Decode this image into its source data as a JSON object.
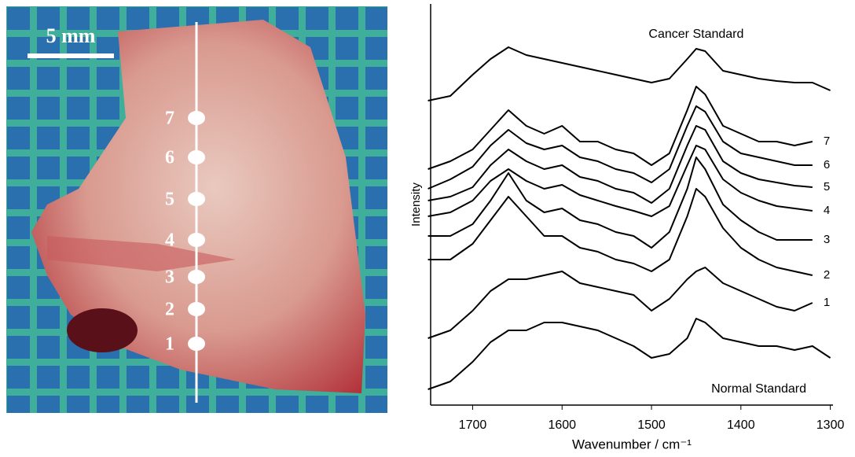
{
  "photo": {
    "scale_bar": "5 mm",
    "points": [
      "1",
      "2",
      "3",
      "4",
      "5",
      "6",
      "7"
    ]
  },
  "chart_data": {
    "type": "line",
    "x_label": "Wavenumber / cm⁻¹",
    "y_label": "Intensity",
    "x": [
      1750,
      1725,
      1700,
      1680,
      1660,
      1640,
      1620,
      1600,
      1580,
      1560,
      1540,
      1520,
      1500,
      1480,
      1460,
      1450,
      1440,
      1420,
      1400,
      1380,
      1360,
      1340,
      1320,
      1300
    ],
    "xlim": [
      1747,
      1297
    ],
    "xticks": [
      1700,
      1600,
      1500,
      1400,
      1300
    ],
    "ylim": [
      0,
      510
    ],
    "series": [
      {
        "name": "Cancer Standard",
        "color": "#000000",
        "values": [
          387,
          393,
          420,
          440,
          455,
          445,
          440,
          435,
          430,
          425,
          420,
          415,
          410,
          415,
          440,
          453,
          450,
          425,
          420,
          415,
          412,
          410,
          410,
          400
        ]
      },
      {
        "name": "7",
        "color": "#000000",
        "values": [
          300,
          310,
          325,
          350,
          375,
          355,
          345,
          355,
          335,
          335,
          325,
          320,
          305,
          320,
          375,
          405,
          395,
          355,
          345,
          335,
          335,
          330,
          335,
          null
        ]
      },
      {
        "name": "6",
        "color": "#000000",
        "values": [
          275,
          287,
          303,
          330,
          350,
          333,
          325,
          330,
          315,
          310,
          300,
          295,
          283,
          300,
          355,
          380,
          373,
          335,
          320,
          315,
          310,
          305,
          305,
          null
        ]
      },
      {
        "name": "5",
        "color": "#000000",
        "values": [
          260,
          265,
          277,
          305,
          325,
          310,
          300,
          305,
          290,
          285,
          275,
          270,
          257,
          275,
          330,
          355,
          350,
          310,
          295,
          287,
          283,
          279,
          277,
          null
        ]
      },
      {
        "name": "4",
        "color": "#000000",
        "values": [
          240,
          245,
          260,
          285,
          300,
          285,
          275,
          280,
          267,
          260,
          253,
          247,
          240,
          253,
          305,
          330,
          325,
          287,
          270,
          260,
          253,
          250,
          247,
          null
        ]
      },
      {
        "name": "3",
        "color": "#000000",
        "values": [
          215,
          215,
          230,
          260,
          295,
          260,
          245,
          250,
          235,
          230,
          220,
          215,
          200,
          220,
          275,
          315,
          300,
          255,
          235,
          220,
          210,
          210,
          210,
          null
        ]
      },
      {
        "name": "2",
        "color": "#000000",
        "values": [
          185,
          185,
          205,
          235,
          265,
          240,
          215,
          215,
          200,
          195,
          185,
          180,
          170,
          185,
          240,
          275,
          265,
          225,
          200,
          185,
          175,
          170,
          165,
          null
        ]
      },
      {
        "name": "1",
        "color": "#000000",
        "values": [
          85,
          95,
          120,
          145,
          160,
          160,
          165,
          170,
          155,
          150,
          145,
          140,
          120,
          135,
          160,
          170,
          175,
          155,
          145,
          135,
          125,
          120,
          130,
          null
        ]
      },
      {
        "name": "Normal Standard",
        "color": "#000000",
        "values": [
          20,
          30,
          55,
          80,
          95,
          95,
          105,
          105,
          100,
          95,
          85,
          75,
          60,
          65,
          85,
          110,
          105,
          85,
          80,
          75,
          75,
          70,
          75,
          60
        ]
      }
    ]
  }
}
